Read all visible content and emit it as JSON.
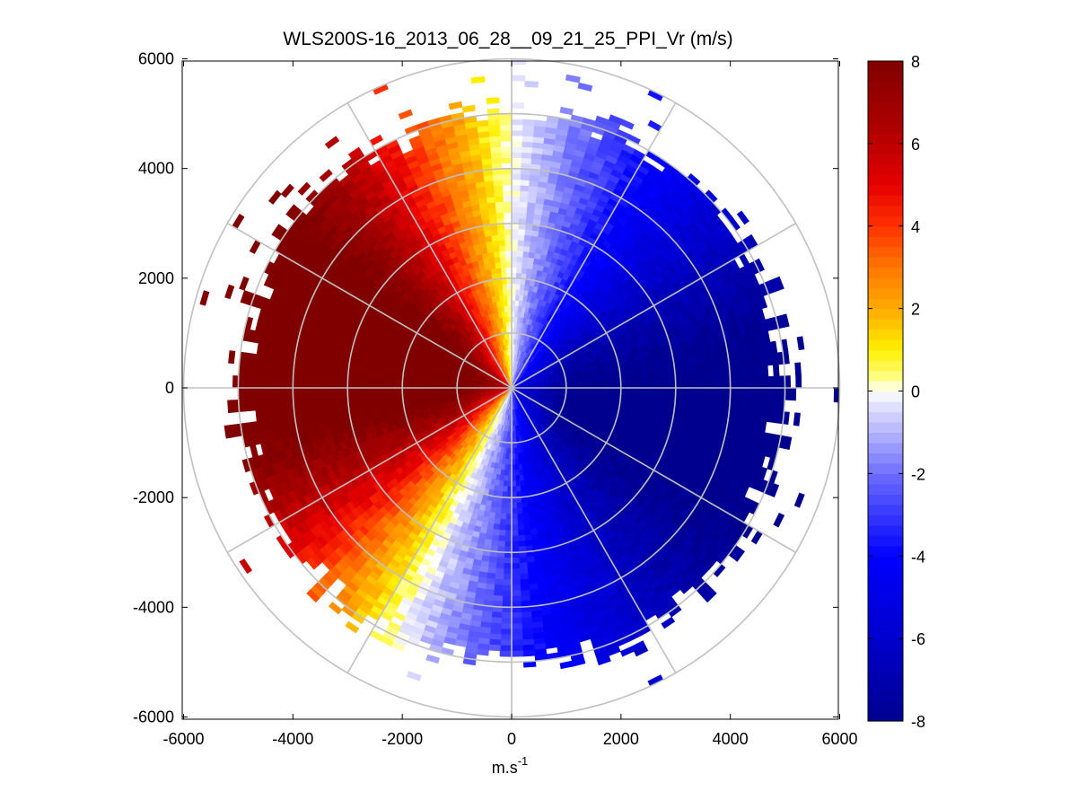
{
  "chart_data": {
    "type": "heatmap",
    "projection": "polar",
    "title": "WLS200S-16_2013_06_28__09_21_25_PPI_Vr (m/s)",
    "xlabel": "m.s",
    "xlabel_superscript": "-1",
    "ylabel": "",
    "xlim": [
      -6000,
      6000
    ],
    "ylim": [
      -6000,
      6000
    ],
    "xticks": [
      -6000,
      -4000,
      -2000,
      0,
      2000,
      4000,
      6000
    ],
    "yticks": [
      6000,
      4000,
      2000,
      0,
      -2000,
      -4000,
      -6000
    ],
    "xtick_labels": [
      "-6000",
      "-4000",
      "-2000",
      "0",
      "2000",
      "4000",
      "6000"
    ],
    "ytick_labels": [
      "6000",
      "4000",
      "2000",
      "0",
      "-2000",
      "-4000",
      "-6000"
    ],
    "range_rings": [
      1000,
      2000,
      3000,
      4000,
      5000,
      6000
    ],
    "spokes_deg": [
      0,
      30,
      60,
      90,
      120,
      150,
      180,
      210,
      240,
      270,
      300,
      330
    ],
    "colorbar": {
      "label": "Vr (m/s)",
      "min": -8,
      "max": 8,
      "ticks": [
        8,
        6,
        4,
        2,
        0,
        -2,
        -4,
        -6,
        -8
      ],
      "tick_labels": [
        "8",
        "6",
        "4",
        "2",
        "0",
        "-2",
        "-4",
        "-6",
        "-8"
      ],
      "colormap": "blue-white-yellow-red"
    },
    "field_description": {
      "zero_line_azimuths_deg": [
        0,
        205
      ],
      "positive_sector": "west (azimuth 205 to 360 deg), max about 8 m/s near azimuth 290 deg",
      "negative_sector": "east (azimuth 0 to 205 deg), min about -7.5 m/s near azimuth 110 deg",
      "max_range_m": 4900,
      "sparse_range_m": [
        4800,
        6000
      ]
    },
    "grid": true
  }
}
